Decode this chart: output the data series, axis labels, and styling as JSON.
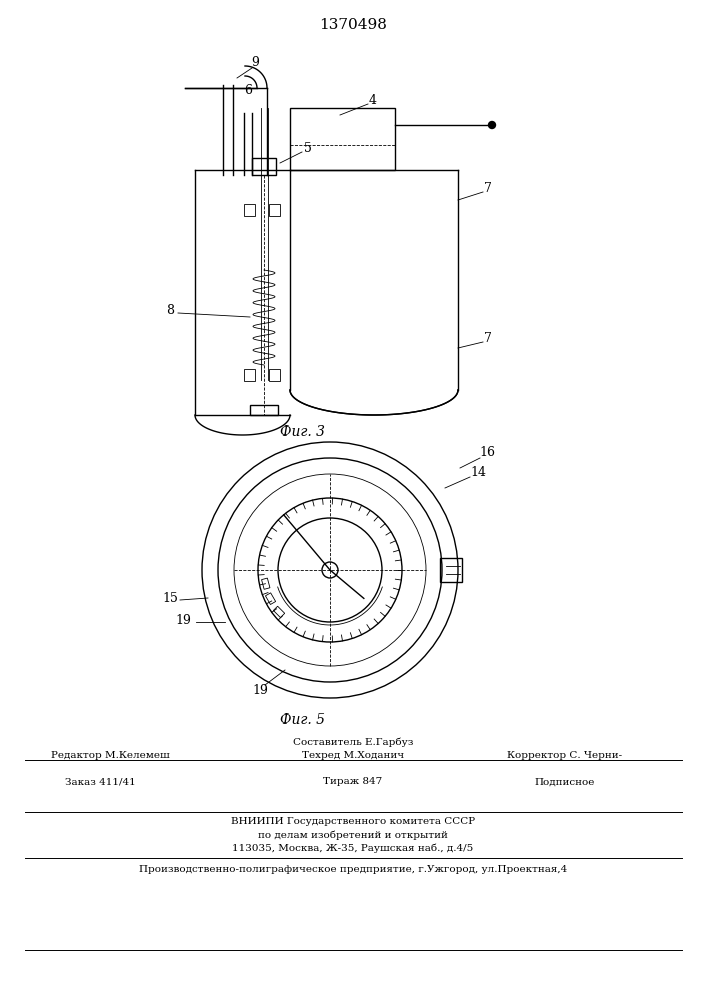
{
  "title": "1370498",
  "fig3_label": "Фиг. 3",
  "fig5_label": "Фиг. 5",
  "footer_line1_left": "Редактор М.Келемеш",
  "footer_line1_center1": "Составитель Е.Гарбуз",
  "footer_line1_center2": "Техред М.Ходанич",
  "footer_line1_right": "Корректор С. Черни-",
  "footer_line2_left": "Заказ 411/41",
  "footer_line2_center": "Тираж 847",
  "footer_line2_right": "Подписное",
  "footer_line3": "ВНИИПИ Государственного комитета СССР",
  "footer_line4": "по делам изобретений и открытий",
  "footer_line5": "113035, Москва, Ж-35, Раушская наб., д.4/5",
  "footer_bottom": "Производственно-полиграфическое предприятие, г.Ужгород, ул.Проектная,4",
  "bg_color": "#ffffff",
  "line_color": "#000000"
}
